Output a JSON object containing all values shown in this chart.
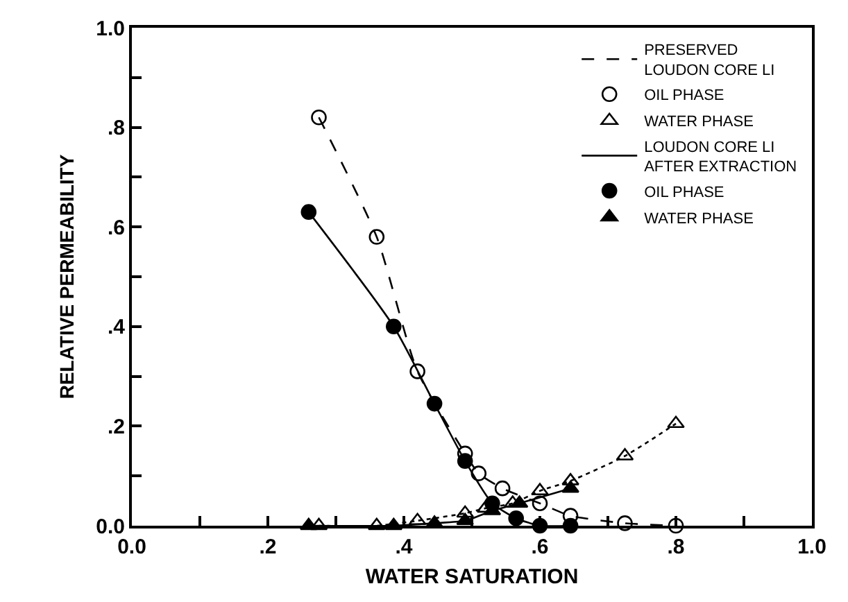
{
  "chart_data": {
    "type": "scatter",
    "xlabel": "WATER SATURATION",
    "ylabel": "RELATIVE PERMEABILITY",
    "xlim": [
      0,
      1
    ],
    "ylim": [
      0,
      1
    ],
    "xticks": [
      {
        "value": 0,
        "label": "0.0"
      },
      {
        "value": 0.1,
        "label": null
      },
      {
        "value": 0.2,
        "label": ".2"
      },
      {
        "value": 0.3,
        "label": null
      },
      {
        "value": 0.4,
        "label": ".4"
      },
      {
        "value": 0.5,
        "label": null
      },
      {
        "value": 0.6,
        "label": ".6"
      },
      {
        "value": 0.7,
        "label": null
      },
      {
        "value": 0.8,
        "label": ".8"
      },
      {
        "value": 0.9,
        "label": null
      },
      {
        "value": 1,
        "label": "1.0"
      }
    ],
    "yticks": [
      {
        "value": 0,
        "label": "0.0"
      },
      {
        "value": 0.1,
        "label": null
      },
      {
        "value": 0.2,
        "label": ".2"
      },
      {
        "value": 0.3,
        "label": null
      },
      {
        "value": 0.4,
        "label": ".4"
      },
      {
        "value": 0.5,
        "label": null
      },
      {
        "value": 0.6,
        "label": ".6"
      },
      {
        "value": 0.7,
        "label": null
      },
      {
        "value": 0.8,
        "label": ".8"
      },
      {
        "value": 0.9,
        "label": null
      },
      {
        "value": 1,
        "label": "1.0"
      }
    ],
    "legend": "top right",
    "series": [
      {
        "type": "line",
        "name": "PRESERVED\nLOUDON CORE LI",
        "color": "#000000",
        "line_style": "dashed",
        "marker": "none",
        "x": [
          0.275,
          0.36,
          0.42,
          0.49,
          0.51,
          0.545,
          0.6,
          0.645,
          0.725,
          0.8
        ],
        "values": [
          0.82,
          0.58,
          0.31,
          0.145,
          0.105,
          0.075,
          0.045,
          0.02,
          0.005,
          0.0
        ]
      },
      {
        "name": "OIL PHASE",
        "color": "#000000",
        "marker": "circle-open",
        "x": [
          0.275,
          0.36,
          0.42,
          0.49,
          0.51,
          0.545,
          0.6,
          0.645,
          0.725,
          0.8
        ],
        "values": [
          0.82,
          0.58,
          0.31,
          0.145,
          0.105,
          0.075,
          0.045,
          0.02,
          0.005,
          0.0
        ]
      },
      {
        "name": "WATER PHASE",
        "color": "#000000",
        "marker": "triangle-open",
        "x": [
          0.275,
          0.36,
          0.42,
          0.49,
          0.52,
          0.56,
          0.6,
          0.645,
          0.725,
          0.8
        ],
        "values": [
          0.0,
          0.0,
          0.01,
          0.025,
          0.035,
          0.045,
          0.07,
          0.09,
          0.14,
          0.205
        ]
      },
      {
        "type": "line",
        "color": "#000000",
        "line_style": "dotted",
        "marker": "none",
        "x": [
          0.275,
          0.36,
          0.42,
          0.49,
          0.52,
          0.56,
          0.6,
          0.645,
          0.725,
          0.8
        ],
        "values": [
          0.0,
          0.0,
          0.01,
          0.025,
          0.035,
          0.045,
          0.07,
          0.09,
          0.14,
          0.205
        ]
      },
      {
        "type": "line",
        "name": "LOUDON CORE LI\nAFTER EXTRACTION",
        "color": "#000000",
        "line_style": "solid",
        "marker": "none",
        "x": [
          0.26,
          0.385,
          0.445,
          0.49,
          0.53,
          0.565,
          0.6,
          0.645
        ],
        "values": [
          0.63,
          0.4,
          0.245,
          0.13,
          0.045,
          0.015,
          0.0,
          0.0
        ]
      },
      {
        "name": "OIL PHASE",
        "color": "#000000",
        "marker": "circle",
        "x": [
          0.26,
          0.385,
          0.445,
          0.49,
          0.53,
          0.565,
          0.6,
          0.645
        ],
        "values": [
          0.63,
          0.4,
          0.245,
          0.13,
          0.045,
          0.015,
          0.0,
          0.0
        ]
      },
      {
        "name": "WATER PHASE",
        "color": "#000000",
        "marker": "triangle",
        "x": [
          0.26,
          0.385,
          0.445,
          0.49,
          0.53,
          0.57,
          0.645
        ],
        "values": [
          0.0,
          0.0,
          0.005,
          0.01,
          0.03,
          0.045,
          0.075
        ]
      },
      {
        "type": "line",
        "color": "#000000",
        "line_style": "solid",
        "marker": "none",
        "x": [
          0.26,
          0.385,
          0.445,
          0.49,
          0.53,
          0.57,
          0.645
        ],
        "values": [
          0.0,
          0.0,
          0.005,
          0.01,
          0.03,
          0.045,
          0.075
        ]
      }
    ]
  }
}
